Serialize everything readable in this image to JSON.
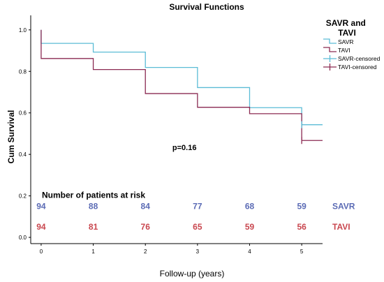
{
  "chart_data": {
    "type": "line",
    "title": "Survival Functions",
    "xlabel": "Follow-up (years)",
    "ylabel": "Cum Survival",
    "xlim": [
      -0.2,
      5.4
    ],
    "ylim": [
      -0.03,
      1.07
    ],
    "x_ticks": [
      0,
      1,
      2,
      3,
      4,
      5
    ],
    "x_tick_labels": [
      "0",
      "1",
      "2",
      "3",
      "4",
      "5"
    ],
    "y_ticks": [
      0.0,
      0.2,
      0.4,
      0.6,
      0.8,
      1.0
    ],
    "y_tick_labels": [
      "0.0",
      "0.2",
      "0.4",
      "0.6",
      "0.8",
      "1.0"
    ],
    "grid": false,
    "legend": {
      "title": "SAVR and TAVI",
      "placement": "top-right outside",
      "entries": [
        "SAVR",
        "TAVI",
        "SAVR-censored",
        "TAVI-censored"
      ]
    },
    "series": [
      {
        "name": "SAVR",
        "color": "#5bbcd6",
        "step_x": [
          0,
          0.25,
          1,
          2,
          3,
          4,
          5,
          5.4
        ],
        "step_y": [
          1.0,
          0.935,
          0.893,
          0.819,
          0.722,
          0.625,
          0.543,
          0.543
        ],
        "censored": [
          {
            "x": 5,
            "y": 0.543
          }
        ]
      },
      {
        "name": "TAVI",
        "color": "#8b2a52",
        "step_x": [
          0,
          0.25,
          1,
          2,
          3,
          4,
          5,
          5.4
        ],
        "step_y": [
          1.0,
          0.862,
          0.809,
          0.693,
          0.627,
          0.596,
          0.467,
          0.467
        ],
        "censored": [
          {
            "x": 5,
            "y": 0.467
          }
        ]
      }
    ],
    "annotations": [
      {
        "text": "p=0.16",
        "x": 2.75,
        "y": 0.42
      }
    ],
    "risk_table": {
      "title": "Number of patients at risk",
      "x": [
        0,
        1,
        2,
        3,
        4,
        5
      ],
      "rows": [
        {
          "name": "SAVR",
          "values": [
            94,
            88,
            84,
            77,
            68,
            59
          ],
          "color": "#5b6bb5",
          "y": 0.15
        },
        {
          "name": "TAVI",
          "values": [
            94,
            81,
            76,
            65,
            59,
            56
          ],
          "color": "#c9474f",
          "y": 0.05
        }
      ]
    }
  }
}
